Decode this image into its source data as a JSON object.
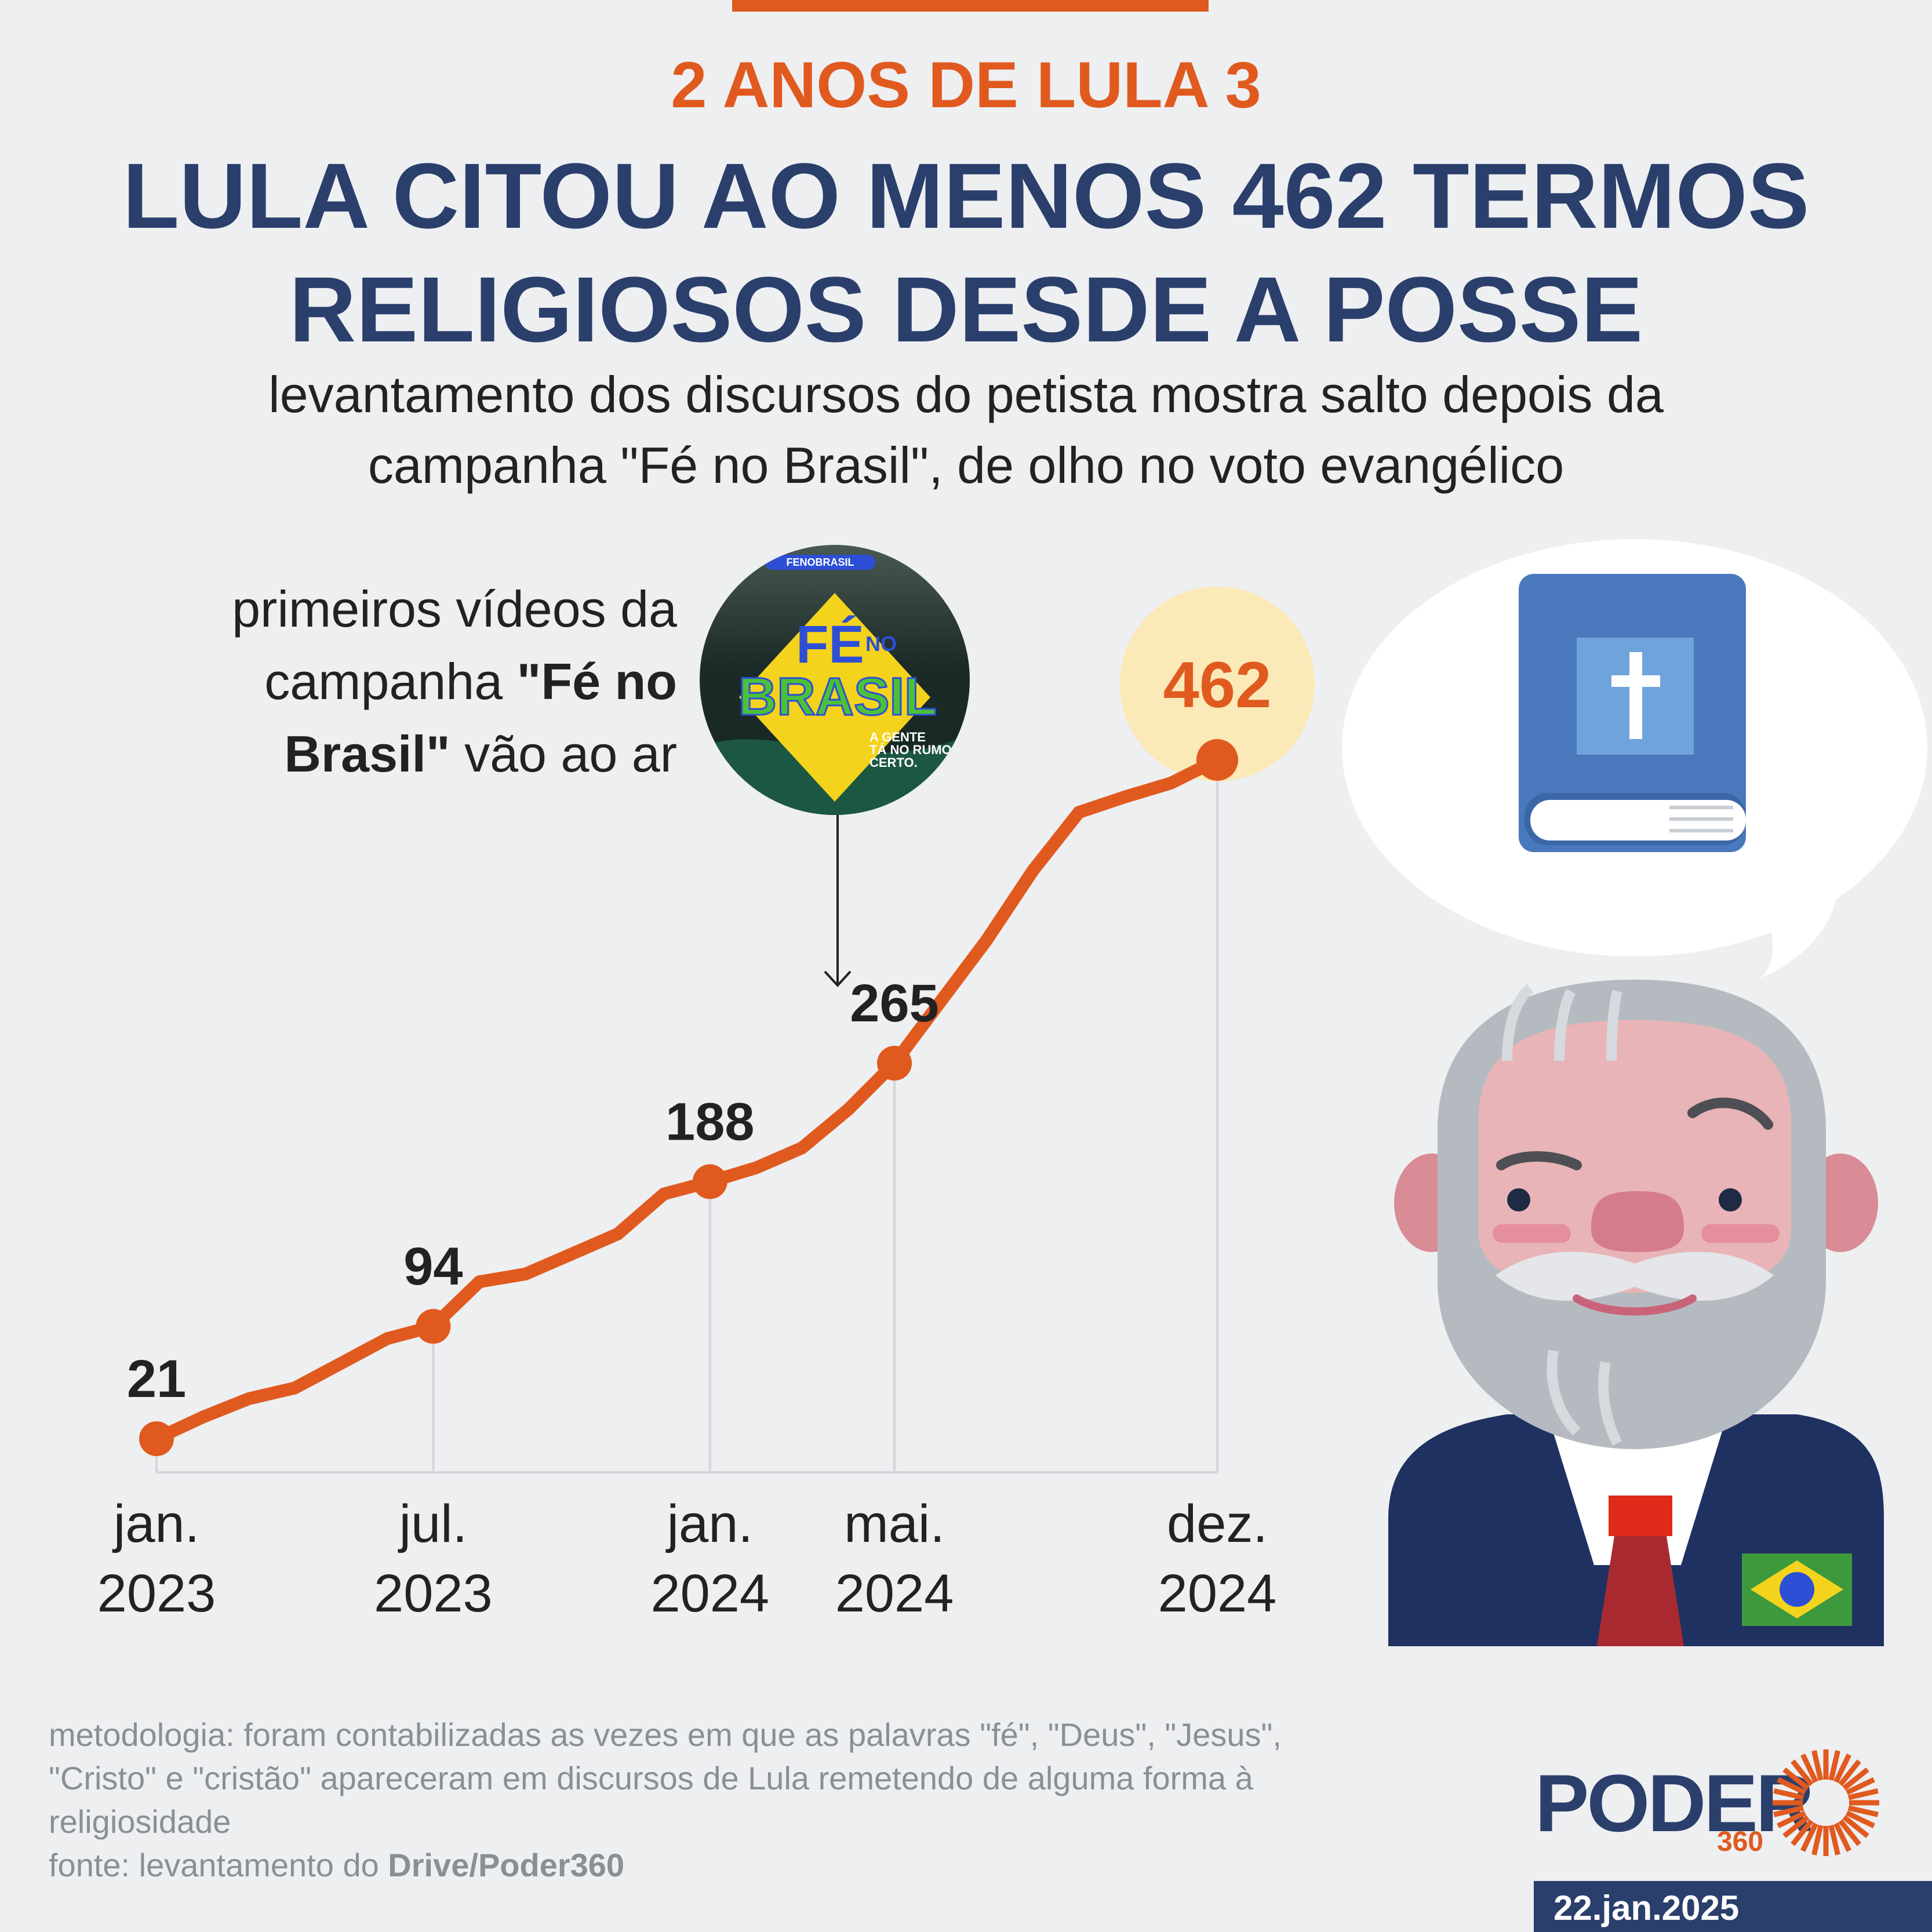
{
  "header": {
    "kicker": "2 ANOS DE LULA 3",
    "headline_line1": "LULA CITOU AO MENOS 462 TERMOS",
    "headline_line2": "RELIGIOSOS DESDE A POSSE",
    "subtitle_line1": "levantamento dos discursos do petista mostra salto depois da",
    "subtitle_line2": "campanha \"Fé no Brasil\", de olho no voto evangélico"
  },
  "annotation": {
    "line1": "primeiros vídeos da",
    "line2_pre": "campanha ",
    "line2_bold": "\"Fé no",
    "line3_bold": "Brasil\"",
    "line3_post": " vão ao ar",
    "badge_handle": "FENOBRASIL",
    "badge_title_top": "FÉ",
    "badge_title_no": "NO",
    "badge_title_main": "BRASIL",
    "badge_tagline1": "A GENTE",
    "badge_tagline2": "TÁ NO RUMO",
    "badge_tagline3": "CERTO."
  },
  "chart_data": {
    "type": "line",
    "title": "",
    "xlabel": "",
    "ylabel": "",
    "ylim": [
      0,
      480
    ],
    "x": [
      "jan.2023",
      "fev.2023",
      "mar.2023",
      "abr.2023",
      "mai.2023",
      "jun.2023",
      "jul.2023",
      "ago.2023",
      "set.2023",
      "out.2023",
      "nov.2023",
      "dez.2023",
      "jan.2024",
      "fev.2024",
      "mar.2024",
      "abr.2024",
      "mai.2024",
      "jun.2024",
      "jul.2024",
      "ago.2024",
      "set.2024",
      "out.2024",
      "nov.2024",
      "dez.2024"
    ],
    "values": [
      21,
      35,
      47,
      54,
      70,
      86,
      94,
      123,
      128,
      141,
      154,
      180,
      188,
      197,
      210,
      235,
      265,
      305,
      345,
      390,
      428,
      438,
      447,
      462
    ],
    "highlighted": [
      {
        "index": 0,
        "label": "21"
      },
      {
        "index": 6,
        "label": "94"
      },
      {
        "index": 12,
        "label": "188"
      },
      {
        "index": 16,
        "label": "265"
      },
      {
        "index": 23,
        "label": "462"
      }
    ],
    "x_ticks": [
      {
        "index": 0,
        "line1": "jan.",
        "line2": "2023"
      },
      {
        "index": 6,
        "line1": "jul.",
        "line2": "2023"
      },
      {
        "index": 12,
        "line1": "jan.",
        "line2": "2024"
      },
      {
        "index": 16,
        "line1": "mai.",
        "line2": "2024"
      },
      {
        "index": 23,
        "line1": "dez.",
        "line2": "2024"
      }
    ],
    "annotation_index": 16,
    "line_color": "#e05a1f",
    "highlight_bg": "#fbe9b7"
  },
  "footer": {
    "method_line1": "metodologia: foram contabilizadas as vezes em que as palavras \"fé\", \"Deus\", \"Jesus\",",
    "method_line2": "\"Cristo\" e \"cristão\" apareceram em discursos de Lula remetendo de alguma forma à",
    "method_line3": "religiosidade",
    "source_pre": "fonte: levantamento do ",
    "source_bold": "Drive/Poder360",
    "logo_word": "PODER",
    "logo_num": "360",
    "date": "22.jan.2025"
  },
  "colors": {
    "accent": "#e05a1f",
    "navy": "#2b3f6c",
    "background": "#eeeff1"
  }
}
